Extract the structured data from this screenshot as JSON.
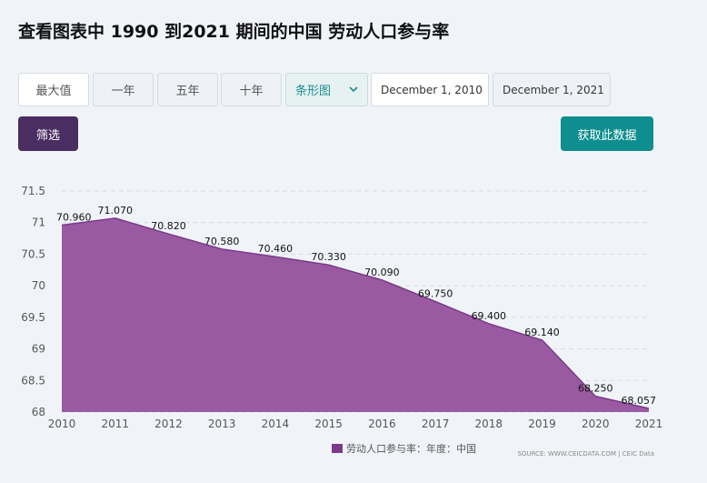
{
  "title": "查看图表中 1990 到2021 期间的中国 劳动人口参与率",
  "toolbar": {
    "ranges": [
      "最大值",
      "一年",
      "五年",
      "十年"
    ],
    "chart_type": "条形图",
    "date_from": "December 1, 2010",
    "date_to": "December 1, 2021"
  },
  "filter_label": "筛选",
  "get_data_label": "获取此数据",
  "legend_label": "劳动人口参与率：年度：中国",
  "source_text": "SOURCE: WWW.CEICDATA.COM | CEIC Data",
  "colors": {
    "area": "#9a5aa2",
    "line": "#7a3a88",
    "accent": "#0e8e8f",
    "filter": "#4a2e62"
  },
  "chart_data": {
    "type": "area",
    "x": [
      "2010",
      "2011",
      "2012",
      "2013",
      "2014",
      "2015",
      "2016",
      "2017",
      "2018",
      "2019",
      "2020",
      "2021"
    ],
    "series": [
      {
        "name": "劳动人口参与率：年度：中国",
        "values": [
          70.96,
          71.07,
          70.82,
          70.58,
          70.46,
          70.33,
          70.09,
          69.75,
          69.4,
          69.14,
          68.25,
          68.057
        ]
      }
    ],
    "data_labels": [
      "70.960",
      "71.070",
      "70.820",
      "70.580",
      "70.460",
      "70.330",
      "70.090",
      "69.750",
      "69.400",
      "69.140",
      "68.250",
      "68.057"
    ],
    "yticks": [
      "68",
      "68.5",
      "69",
      "69.5",
      "70",
      "70.5",
      "71",
      "71.5"
    ],
    "ylim": [
      68,
      71.5
    ],
    "grid": true,
    "legend": "bottom"
  }
}
